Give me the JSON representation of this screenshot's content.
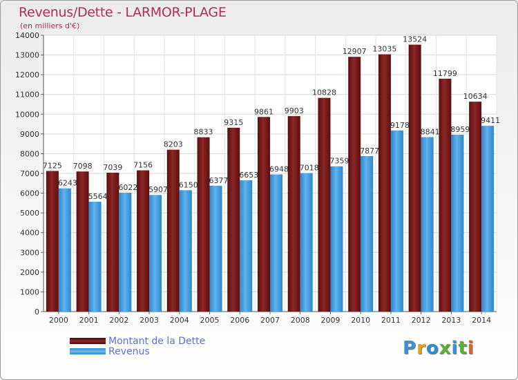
{
  "header": {
    "title": "Revenus/Dette - LARMOR-PLAGE",
    "subtitle": "(en milliers d'€)"
  },
  "legend": [
    {
      "label": "Montant de la Dette",
      "color": "#7a1a1a"
    },
    {
      "label": "Revenus",
      "color": "#3f9de0"
    }
  ],
  "logo": {
    "text": "Proxiti",
    "letter_colors": [
      "#3f8fd8",
      "#e8a020",
      "#2a8fd8",
      "#58b030",
      "#3f8fd8",
      "#58b030",
      "#e86020"
    ]
  },
  "chart_data": {
    "type": "bar",
    "title": "Revenus/Dette - LARMOR-PLAGE",
    "subtitle": "(en milliers d'€)",
    "categories": [
      "2000",
      "2001",
      "2002",
      "2003",
      "2004",
      "2005",
      "2006",
      "2007",
      "2008",
      "2009",
      "2010",
      "2011",
      "2012",
      "2013",
      "2014"
    ],
    "series": [
      {
        "name": "Montant de la Dette",
        "color": "#7a1a1a",
        "values": [
          7125,
          7098,
          7039,
          7156,
          8203,
          8833,
          9315,
          9861,
          9903,
          10828,
          12907,
          13035,
          13524,
          11799,
          10634
        ]
      },
      {
        "name": "Revenus",
        "color": "#3f9de0",
        "values": [
          6243,
          5564,
          6022,
          5907,
          6150,
          6377,
          6653,
          6948,
          7018,
          7359,
          7877,
          9178,
          8841,
          8959,
          9411
        ]
      }
    ],
    "ylim": [
      0,
      14000
    ],
    "yticks": [
      0,
      1000,
      2000,
      3000,
      4000,
      5000,
      6000,
      7000,
      8000,
      9000,
      10000,
      11000,
      12000,
      13000,
      14000
    ],
    "grid": true,
    "legend_position": "bottom-left"
  }
}
